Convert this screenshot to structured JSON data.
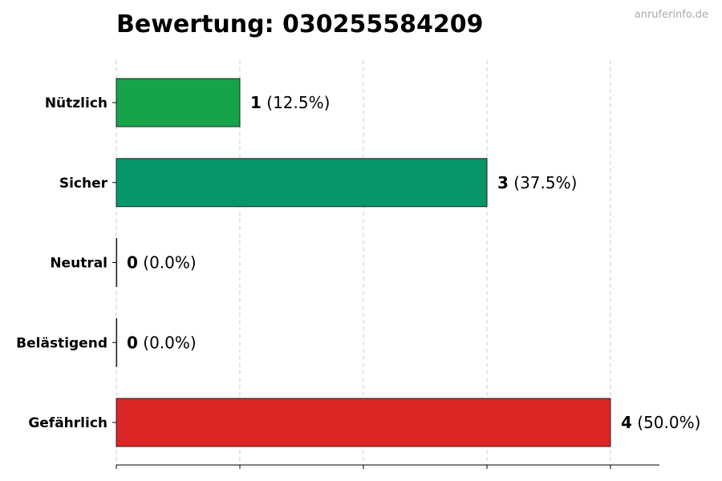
{
  "watermark": "anruferinfo.de",
  "chart_data": {
    "type": "bar",
    "orientation": "horizontal",
    "title": "Bewertung: 030255584209",
    "xlabel": "",
    "ylabel": "",
    "xlim": [
      0,
      4.4
    ],
    "grid": "vertical dashed",
    "categories": [
      "Nützlich",
      "Sicher",
      "Neutral",
      "Belästigend",
      "Gefährlich"
    ],
    "values": [
      1,
      3,
      0,
      0,
      4
    ],
    "value_labels": [
      "(12.5%)",
      "(37.5%)",
      "(0.0%)",
      "(0.0%)",
      "(50.0%)"
    ],
    "colors": [
      "#16a34a",
      "#059669",
      "#6b7280",
      "#6b7280",
      "#dc2626"
    ]
  }
}
